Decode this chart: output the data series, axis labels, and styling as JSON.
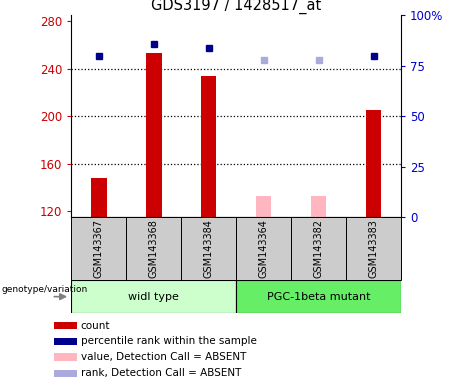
{
  "title": "GDS3197 / 1428517_at",
  "samples": [
    "GSM143367",
    "GSM143368",
    "GSM143384",
    "GSM143364",
    "GSM143382",
    "GSM143383"
  ],
  "ylim_left": [
    115,
    285
  ],
  "ylim_right": [
    0,
    100
  ],
  "yticks_left": [
    120,
    160,
    200,
    240,
    280
  ],
  "yticks_right": [
    0,
    25,
    50,
    75,
    100
  ],
  "count_values": [
    148,
    253,
    234,
    null,
    null,
    205
  ],
  "count_absent_values": [
    null,
    null,
    null,
    133,
    133,
    null
  ],
  "rank_values": [
    80,
    86,
    84,
    null,
    null,
    80
  ],
  "rank_absent_values": [
    null,
    null,
    null,
    78,
    78,
    null
  ],
  "count_color": "#CC0000",
  "count_absent_color": "#FFB6C1",
  "rank_color": "#00008B",
  "rank_absent_color": "#AAAADD",
  "ylabel_left_color": "#CC0000",
  "ylabel_right_color": "#0000CC",
  "legend_items": [
    {
      "label": "count",
      "color": "#CC0000"
    },
    {
      "label": "percentile rank within the sample",
      "color": "#00008B"
    },
    {
      "label": "value, Detection Call = ABSENT",
      "color": "#FFB6C1"
    },
    {
      "label": "rank, Detection Call = ABSENT",
      "color": "#AAAADD"
    }
  ],
  "group_label_left": "widl type",
  "group_label_right": "PGC-1beta mutant",
  "group_color_left": "#CCFFCC",
  "group_color_right": "#66EE66",
  "sample_box_color": "#CCCCCC",
  "genotype_label": "genotype/variation"
}
